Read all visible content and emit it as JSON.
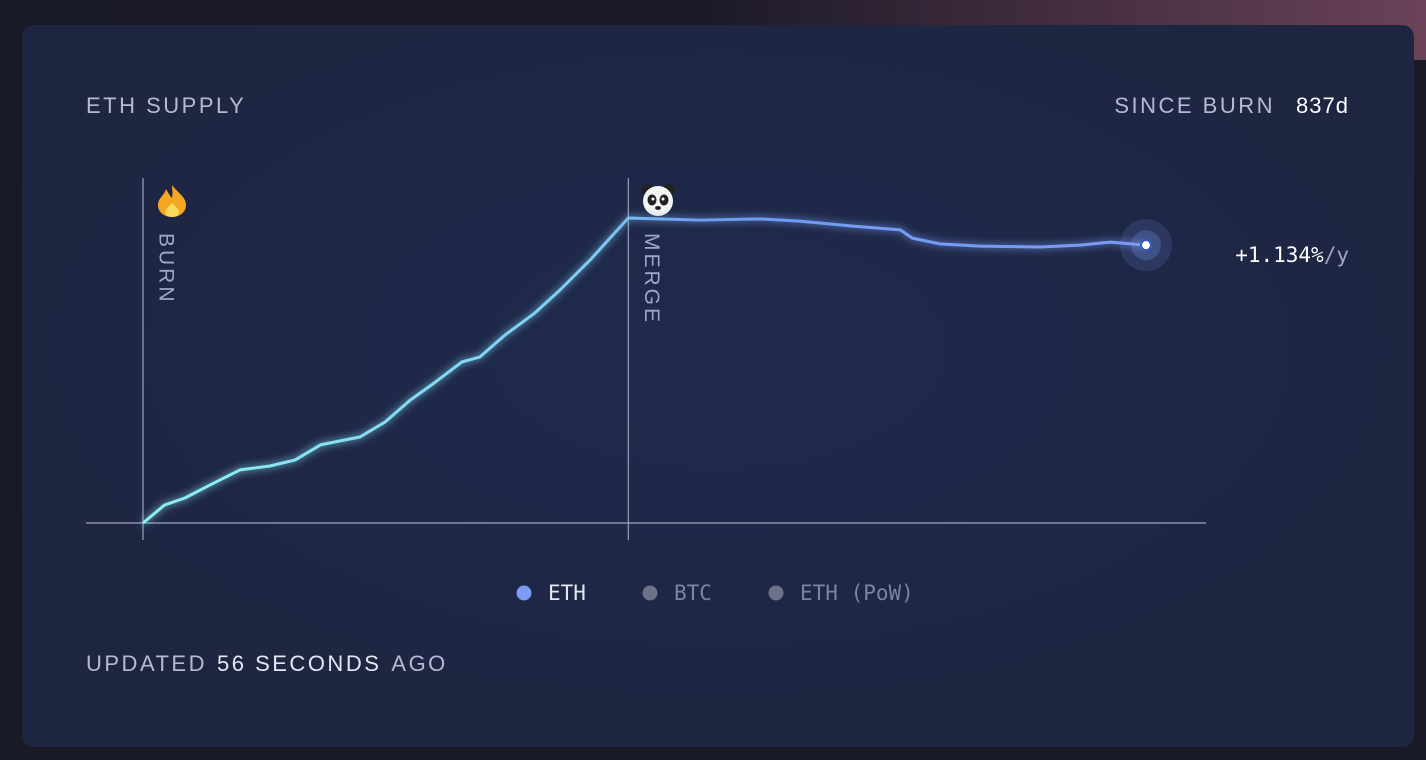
{
  "header": {
    "title": "ETH SUPPLY",
    "since_label": "SINCE BURN",
    "since_value": "837d"
  },
  "chart_data": {
    "type": "line",
    "x": [
      0,
      18,
      35,
      56,
      81,
      106,
      127,
      148,
      164,
      181,
      202,
      223,
      244,
      266,
      281,
      302,
      327,
      348,
      373,
      405,
      465,
      515,
      548,
      590,
      632,
      642,
      665,
      698,
      749,
      782,
      807,
      837
    ],
    "series": [
      {
        "name": "ETH",
        "color": "#7b9bf5",
        "values": [
          0,
          5.9,
          8.2,
          12.5,
          17.4,
          18.7,
          20.7,
          25.6,
          26.9,
          28.2,
          33.1,
          40.3,
          46.2,
          52.8,
          54.4,
          61.6,
          68.9,
          76.4,
          86.2,
          100,
          99.3,
          99.7,
          99,
          97.4,
          96.1,
          93.4,
          91.5,
          90.8,
          90.5,
          91.1,
          92.1,
          91.1
        ]
      }
    ],
    "inactive_series": [
      {
        "name": "BTC",
        "color": "#6e7289"
      },
      {
        "name": "ETH (PoW)",
        "color": "#6e7289"
      }
    ],
    "xlim": [
      0,
      837
    ],
    "ylim": [
      0,
      100
    ],
    "events": [
      {
        "label": "BURN",
        "x": 0
      },
      {
        "label": "MERGE",
        "x": 405
      }
    ],
    "rate": "+1.134%",
    "rate_unit": "/y"
  },
  "footer": {
    "prefix": "UPDATED",
    "time": "56 SECONDS",
    "suffix": "AGO"
  }
}
